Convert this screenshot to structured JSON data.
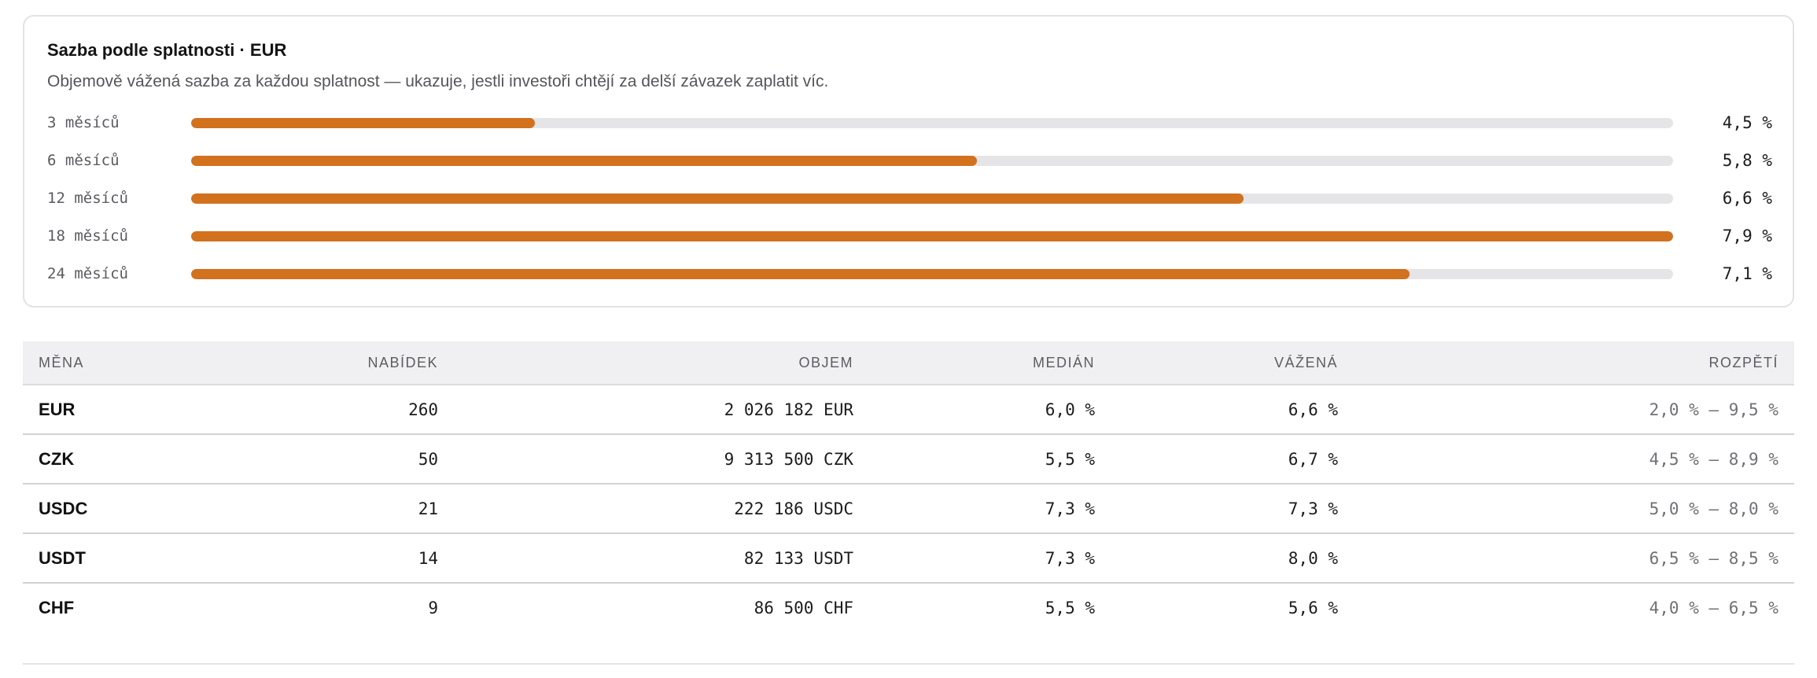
{
  "chart_data": {
    "type": "bar",
    "orientation": "horizontal",
    "title": "Sazba podle splatnosti · EUR",
    "subtitle": "Objemově vážená sazba za každou splatnost — ukazuje, jestli investoři chtějí za delší závazek zaplatit víc.",
    "categories": [
      "3 měsíců",
      "6 měsíců",
      "12 měsíců",
      "18 měsíců",
      "24 měsíců"
    ],
    "values": [
      4.5,
      5.8,
      6.6,
      7.9,
      7.1
    ],
    "value_labels": [
      "4,5 %",
      "5,8 %",
      "6,6 %",
      "7,9 %",
      "7,1 %"
    ],
    "fill_fraction": [
      0.232,
      0.53,
      0.71,
      1.0,
      0.822
    ],
    "unit": "%",
    "bar_color": "#d2711e",
    "track_color": "#e5e5e7",
    "grid": false,
    "legend": "none"
  },
  "table": {
    "headers": {
      "currency": "MĚNA",
      "offers": "NABÍDEK",
      "volume": "OBJEM",
      "median": "MEDIÁN",
      "weighted": "VÁŽENÁ",
      "range": "ROZPĚTÍ"
    },
    "rows": [
      {
        "currency": "EUR",
        "offers": "260",
        "volume": "2 026 182 EUR",
        "median": "6,0 %",
        "weighted": "6,6 %",
        "range": "2,0 % – 9,5 %"
      },
      {
        "currency": "CZK",
        "offers": "50",
        "volume": "9 313 500 CZK",
        "median": "5,5 %",
        "weighted": "6,7 %",
        "range": "4,5 % – 8,9 %"
      },
      {
        "currency": "USDC",
        "offers": "21",
        "volume": "222 186 USDC",
        "median": "7,3 %",
        "weighted": "7,3 %",
        "range": "5,0 % – 8,0 %"
      },
      {
        "currency": "USDT",
        "offers": "14",
        "volume": "82 133 USDT",
        "median": "7,3 %",
        "weighted": "8,0 %",
        "range": "6,5 % – 8,5 %"
      },
      {
        "currency": "CHF",
        "offers": "9",
        "volume": "86 500 CHF",
        "median": "5,5 %",
        "weighted": "5,6 %",
        "range": "4,0 % – 6,5 %"
      }
    ]
  }
}
